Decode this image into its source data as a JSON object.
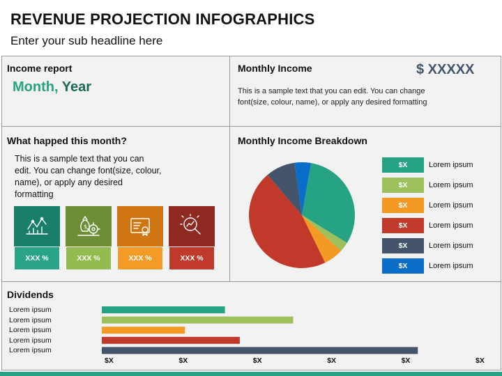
{
  "header": {
    "title": "REVENUE PROJECTION INFOGRAPHICS",
    "subtitle": "Enter your sub headline here"
  },
  "income_report": {
    "heading": "Income report",
    "month": "Month,",
    "year": "Year"
  },
  "monthly_income": {
    "heading": "Monthly Income",
    "amount": "$ XXXXX",
    "text": "This is a sample text that you can edit. You can change font(size, colour, name), or apply any desired formatting"
  },
  "what_happened": {
    "heading": "What happed this month?",
    "text": "This is a sample text that you can edit. You can change font(size, colour, name), or apply any desired formatting",
    "cards": [
      {
        "icon": "line-chart-icon",
        "value": "XXX %",
        "top_color": "#1a7f69",
        "bottom_color": "#2aa486"
      },
      {
        "icon": "money-gears-icon",
        "value": "XXX %",
        "top_color": "#6d8e35",
        "bottom_color": "#93bb4f"
      },
      {
        "icon": "certificate-icon",
        "value": "XXX %",
        "top_color": "#cf7512",
        "bottom_color": "#f39b26"
      },
      {
        "icon": "magnifier-analytics-icon",
        "value": "XXX %",
        "top_color": "#8f2a22",
        "bottom_color": "#c0392b"
      }
    ]
  },
  "breakdown": {
    "heading": "Monthly Income Breakdown",
    "legend": [
      {
        "chip": "$X",
        "label": "Lorem ipsum",
        "color": "#26a382"
      },
      {
        "chip": "$X",
        "label": "Lorem ipsum",
        "color": "#9dc05d"
      },
      {
        "chip": "$X",
        "label": "Lorem ipsum",
        "color": "#f49a24"
      },
      {
        "chip": "$X",
        "label": "Lorem ipsum",
        "color": "#c0392b"
      },
      {
        "chip": "$X",
        "label": "Lorem ipsum",
        "color": "#44546a"
      },
      {
        "chip": "$X",
        "label": "Lorem ipsum",
        "color": "#0a6ec9"
      }
    ]
  },
  "chart_data": [
    {
      "type": "pie",
      "title": "Monthly Income Breakdown",
      "categories": [
        "Lorem ipsum",
        "Lorem ipsum",
        "Lorem ipsum",
        "Lorem ipsum",
        "Lorem ipsum",
        "Lorem ipsum"
      ],
      "values": [
        31,
        3,
        6,
        46,
        9,
        5
      ],
      "colors": [
        "#26a382",
        "#9dc05d",
        "#f49a24",
        "#c0392b",
        "#44546a",
        "#0a6ec9"
      ]
    },
    {
      "type": "bar",
      "title": "Dividends",
      "orientation": "horizontal",
      "categories": [
        "Lorem ipsum",
        "Lorem ipsum",
        "Lorem ipsum",
        "Lorem ipsum",
        "Lorem ipsum"
      ],
      "values": [
        1.66,
        2.58,
        1.12,
        1.86,
        4.26
      ],
      "colors": [
        "#26a382",
        "#9dc05d",
        "#f49a24",
        "#c0392b",
        "#44546a"
      ],
      "tick_labels": [
        "$X",
        "$X",
        "$X",
        "$X",
        "$X",
        "$X"
      ],
      "xlim": [
        0,
        5
      ]
    }
  ],
  "dividends": {
    "heading": "Dividends"
  },
  "footer": {
    "bar_color": "#26a382"
  }
}
